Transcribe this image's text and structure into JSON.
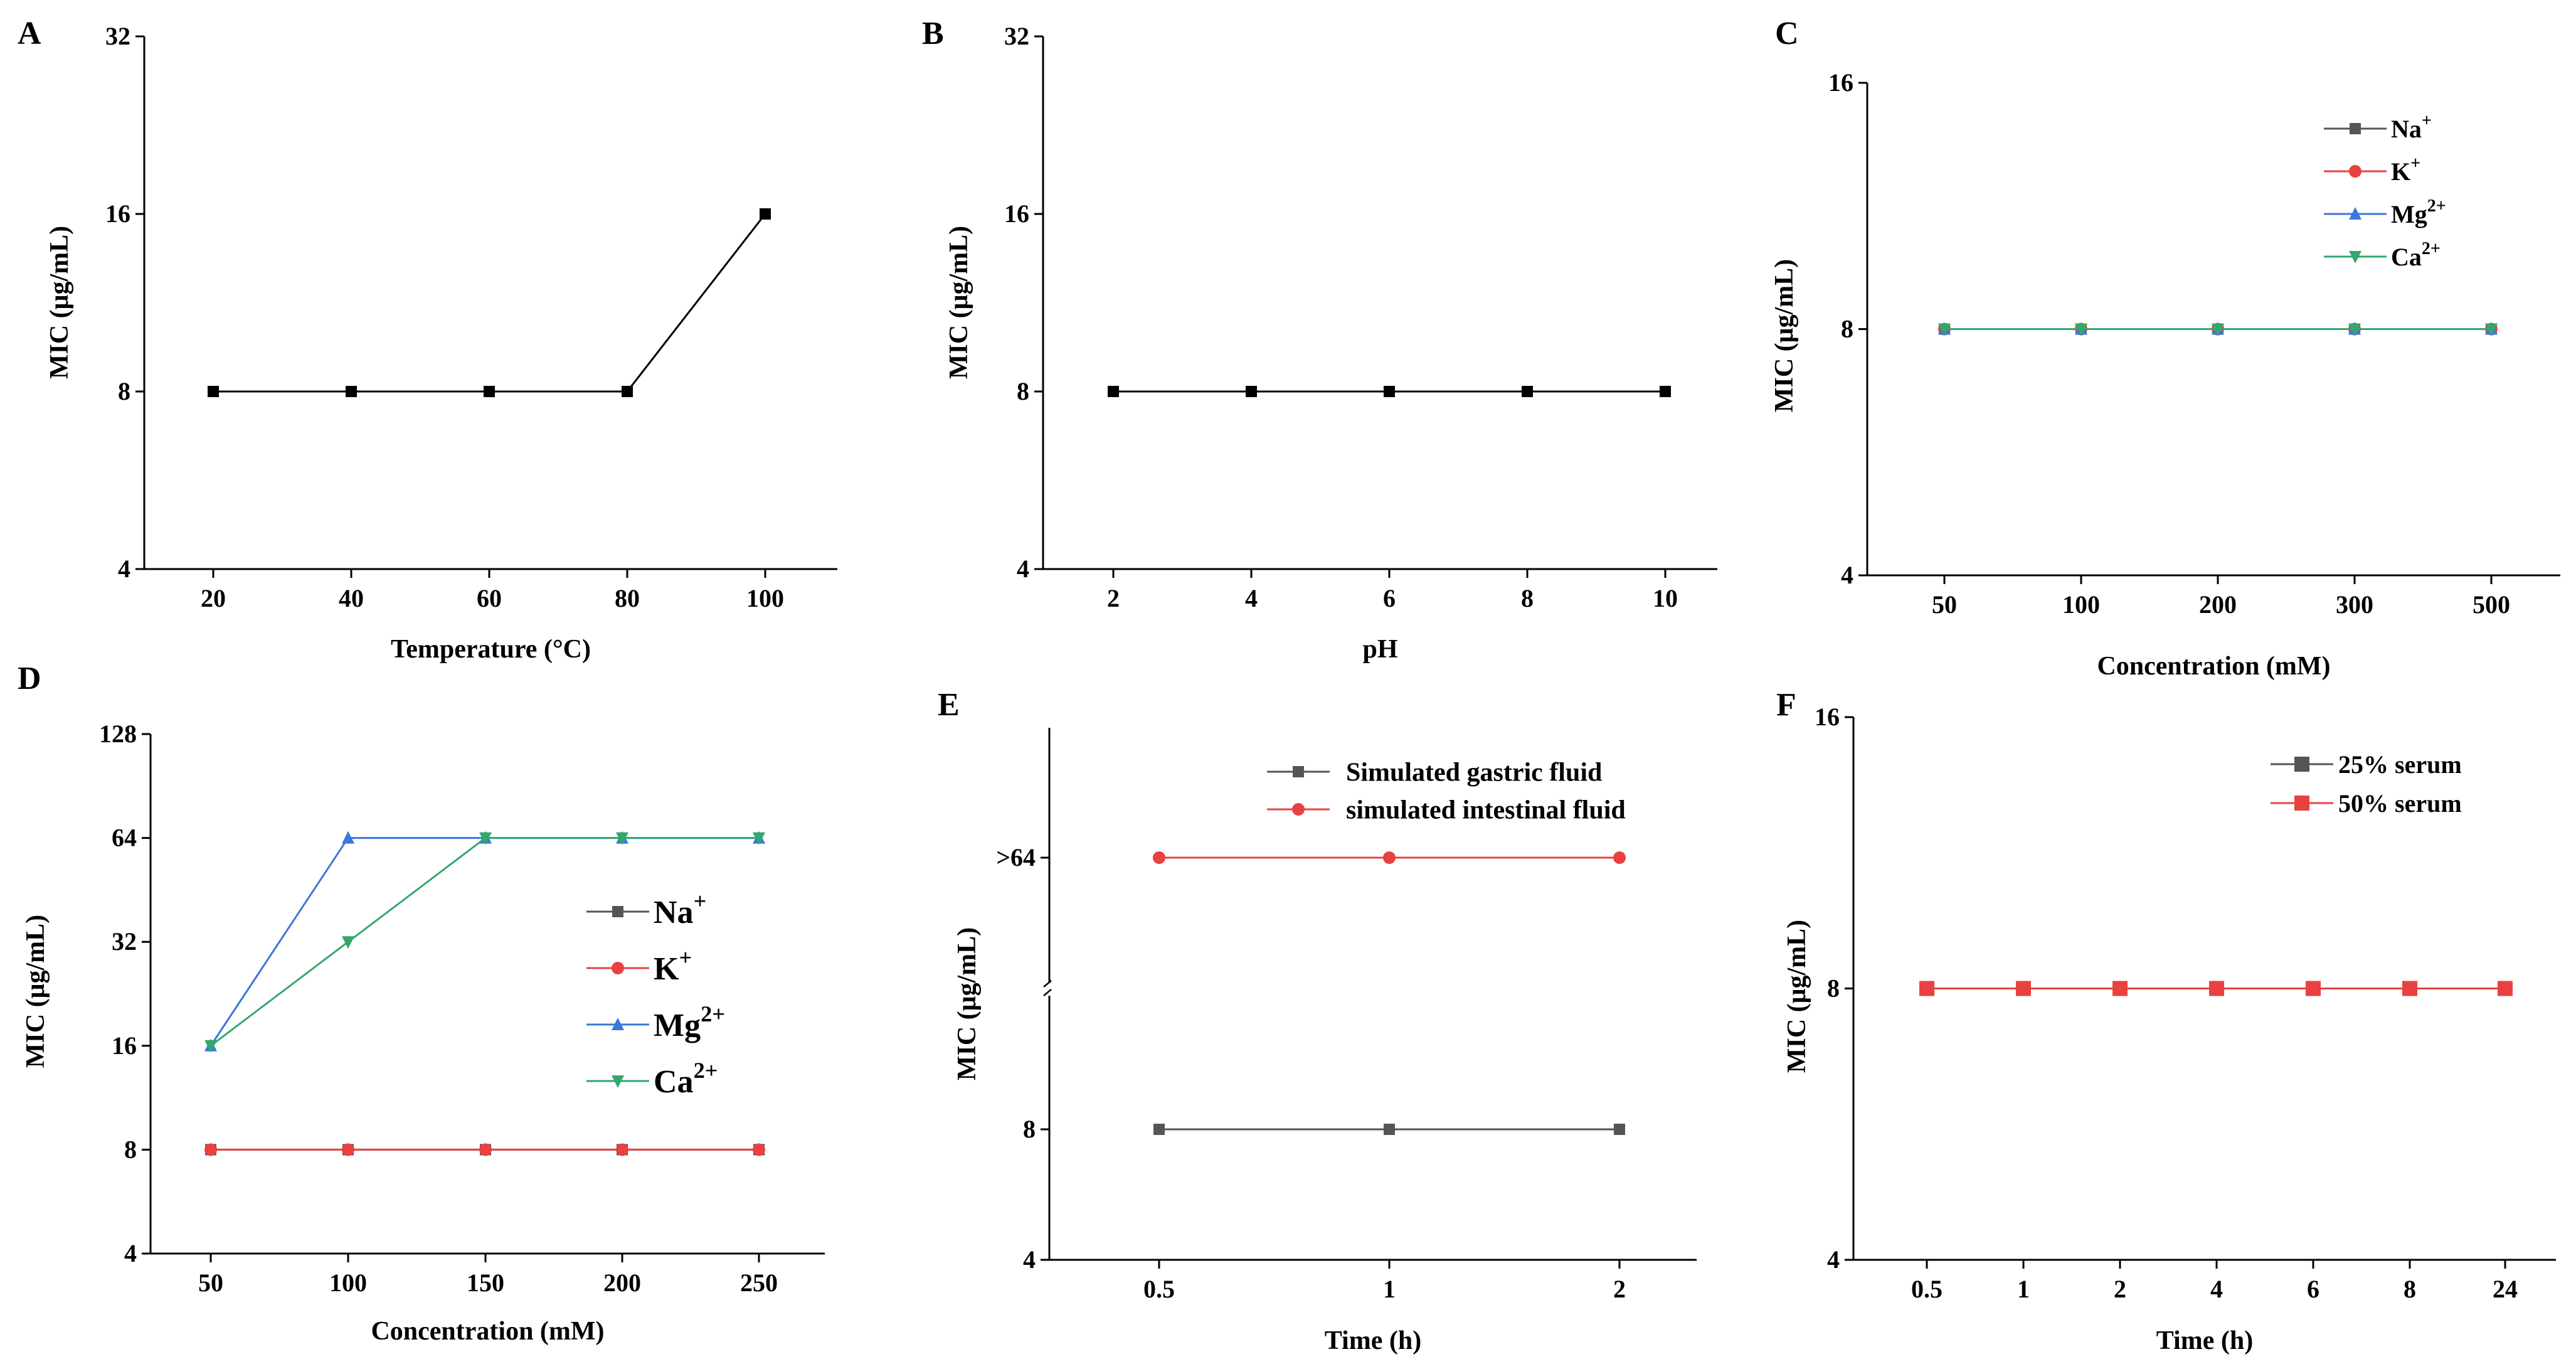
{
  "figure_title": "",
  "chart_data": [
    {
      "panel": "A",
      "type": "line",
      "scale": "log2",
      "xlabel": "Temperature (°C)",
      "ylabel": "MIC (μg/mL)",
      "categories": [
        "20",
        "40",
        "60",
        "80",
        "100"
      ],
      "yticks": [
        4,
        8,
        16,
        32
      ],
      "ylim": [
        4,
        32
      ],
      "series": [
        {
          "name": "",
          "color": "#000000",
          "marker": "square",
          "values": [
            8,
            8,
            8,
            8,
            16
          ]
        }
      ]
    },
    {
      "panel": "B",
      "type": "line",
      "scale": "log2",
      "xlabel": "pH",
      "ylabel": "MIC (μg/mL)",
      "categories": [
        "2",
        "4",
        "6",
        "8",
        "10"
      ],
      "yticks": [
        4,
        8,
        16,
        32
      ],
      "ylim": [
        4,
        32
      ],
      "series": [
        {
          "name": "",
          "color": "#000000",
          "marker": "square",
          "values": [
            8,
            8,
            8,
            8,
            8
          ]
        }
      ]
    },
    {
      "panel": "C",
      "type": "line",
      "scale": "log2",
      "xlabel": "Concentration (mM)",
      "ylabel": "MIC (μg/mL)",
      "categories": [
        "50",
        "100",
        "200",
        "300",
        "500"
      ],
      "yticks": [
        4,
        8,
        16
      ],
      "ylim": [
        4,
        16
      ],
      "legend_position": "top-right",
      "series": [
        {
          "name": "Na",
          "sup": "+",
          "color": "#555555",
          "marker": "square",
          "values": [
            8,
            8,
            8,
            8,
            8
          ]
        },
        {
          "name": "K",
          "sup": "+",
          "color": "#e8413f",
          "marker": "circle",
          "values": [
            8,
            8,
            8,
            8,
            8
          ]
        },
        {
          "name": "Mg",
          "sup": "2+",
          "color": "#3a78d8",
          "marker": "triangle-up",
          "values": [
            8,
            8,
            8,
            8,
            8
          ]
        },
        {
          "name": "Ca",
          "sup": "2+",
          "color": "#33a86e",
          "marker": "triangle-down",
          "values": [
            8,
            8,
            8,
            8,
            8
          ]
        }
      ]
    },
    {
      "panel": "D",
      "type": "line",
      "scale": "log2",
      "xlabel": "Concentration (mM)",
      "ylabel": "MIC (μg/mL)",
      "categories": [
        "50",
        "100",
        "150",
        "200",
        "250"
      ],
      "yticks": [
        4,
        8,
        16,
        32,
        64,
        128
      ],
      "ylim": [
        4,
        128
      ],
      "legend_position": "right",
      "series": [
        {
          "name": "Na",
          "sup": "+",
          "color": "#555555",
          "marker": "square",
          "values": [
            8,
            8,
            8,
            8,
            8
          ]
        },
        {
          "name": "K",
          "sup": "+",
          "color": "#e8413f",
          "marker": "circle",
          "values": [
            8,
            8,
            8,
            8,
            8
          ]
        },
        {
          "name": "Mg",
          "sup": "2+",
          "color": "#3a78d8",
          "marker": "triangle-up",
          "values": [
            16,
            64,
            64,
            64,
            64
          ]
        },
        {
          "name": "Ca",
          "sup": "2+",
          "color": "#33a86e",
          "marker": "triangle-down",
          "values": [
            16,
            32,
            64,
            64,
            64
          ]
        }
      ]
    },
    {
      "panel": "E",
      "type": "line",
      "scale": "broken-axis",
      "xlabel": "Time (h)",
      "ylabel": "MIC (μg/mL)",
      "categories": [
        "0.5",
        "1",
        "2"
      ],
      "ytick_labels": [
        "4",
        "8",
        ">64"
      ],
      "legend_position": "top-right",
      "series": [
        {
          "name": "Simulated gastric fluid",
          "color": "#555555",
          "marker": "square",
          "values": [
            "8",
            "8",
            "8"
          ]
        },
        {
          "name": "simulated intestinal fluid",
          "color": "#e8413f",
          "marker": "circle",
          "values": [
            ">64",
            ">64",
            ">64"
          ]
        }
      ]
    },
    {
      "panel": "F",
      "type": "line",
      "scale": "log2",
      "xlabel": "Time (h)",
      "ylabel": "MIC (μg/mL)",
      "categories": [
        "0.5",
        "1",
        "2",
        "4",
        "6",
        "8",
        "24"
      ],
      "yticks": [
        4,
        8,
        16
      ],
      "ylim": [
        4,
        16
      ],
      "legend_position": "top-right",
      "series": [
        {
          "name": "25% serum",
          "color": "#555555",
          "marker": "square",
          "values": [
            8,
            8,
            8,
            8,
            8,
            8,
            8
          ]
        },
        {
          "name": "50% serum",
          "color": "#e8413f",
          "marker": "square",
          "values": [
            8,
            8,
            8,
            8,
            8,
            8,
            8
          ]
        }
      ]
    }
  ]
}
